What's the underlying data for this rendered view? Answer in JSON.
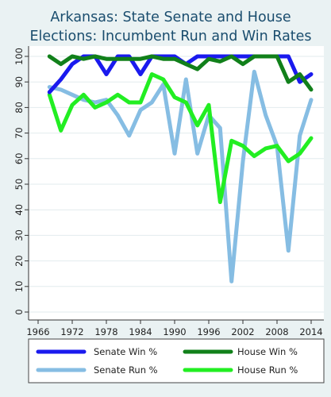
{
  "chart_data": {
    "type": "line",
    "title": "Arkansas: State Senate and House Elections: Incumbent Run and Win Rates",
    "title_lines": [
      "Arkansas: State Senate and House",
      "Elections: Incumbent Run and Win Rates"
    ],
    "xlabel": "",
    "ylabel": "",
    "xlim": [
      1964,
      2016
    ],
    "ylim": [
      0,
      100
    ],
    "xticks": [
      "1966",
      "1972",
      "1978",
      "1984",
      "1990",
      "1996",
      "2002",
      "2008",
      "2014"
    ],
    "yticks": [
      "0",
      "10",
      "20",
      "30",
      "40",
      "50",
      "60",
      "70",
      "80",
      "90",
      "100"
    ],
    "grid": true,
    "legend_position": "bottom",
    "series": [
      {
        "name": "Senate Win %",
        "color": "#1a1aee",
        "x": [
          1968,
          1970,
          1972,
          1974,
          1976,
          1978,
          1980,
          1982,
          1984,
          1986,
          1988,
          1990,
          1992,
          1994,
          1996,
          1998,
          2000,
          2002,
          2004,
          2006,
          2008,
          2010,
          2012,
          2014
        ],
        "values": [
          86,
          91,
          97,
          100,
          100,
          93,
          100,
          100,
          93,
          100,
          100,
          100,
          97,
          100,
          100,
          100,
          100,
          100,
          100,
          100,
          100,
          100,
          90,
          93
        ]
      },
      {
        "name": "House Win %",
        "color": "#11801a",
        "x": [
          1968,
          1970,
          1972,
          1974,
          1976,
          1978,
          1980,
          1982,
          1984,
          1986,
          1988,
          1990,
          1992,
          1994,
          1996,
          1998,
          2000,
          2002,
          2004,
          2006,
          2008,
          2010,
          2012,
          2014
        ],
        "values": [
          100,
          97,
          100,
          99,
          100,
          99,
          99,
          99,
          99,
          100,
          99,
          99,
          97,
          95,
          99,
          98,
          100,
          97,
          100,
          100,
          100,
          90,
          93,
          87
        ]
      },
      {
        "name": "Senate Run %",
        "color": "#86bde3",
        "x": [
          1968,
          1970,
          1972,
          1974,
          1976,
          1978,
          1980,
          1982,
          1984,
          1986,
          1988,
          1990,
          1992,
          1994,
          1996,
          1998,
          2000,
          2002,
          2004,
          2006,
          2008,
          2010,
          2012,
          2014
        ],
        "values": [
          88,
          87,
          85,
          83,
          82,
          83,
          77,
          69,
          79,
          82,
          89,
          62,
          91,
          62,
          77,
          72,
          12,
          59,
          94,
          77,
          65,
          24,
          69,
          83
        ]
      },
      {
        "name": "House Run %",
        "color": "#22ee22",
        "x": [
          1968,
          1970,
          1972,
          1974,
          1976,
          1978,
          1980,
          1982,
          1984,
          1986,
          1988,
          1990,
          1992,
          1994,
          1996,
          1998,
          2000,
          2002,
          2004,
          2006,
          2008,
          2010,
          2012,
          2014
        ],
        "values": [
          85,
          71,
          81,
          85,
          80,
          82,
          85,
          82,
          82,
          93,
          91,
          84,
          82,
          73,
          81,
          43,
          67,
          65,
          61,
          64,
          65,
          59,
          62,
          68
        ]
      }
    ]
  }
}
